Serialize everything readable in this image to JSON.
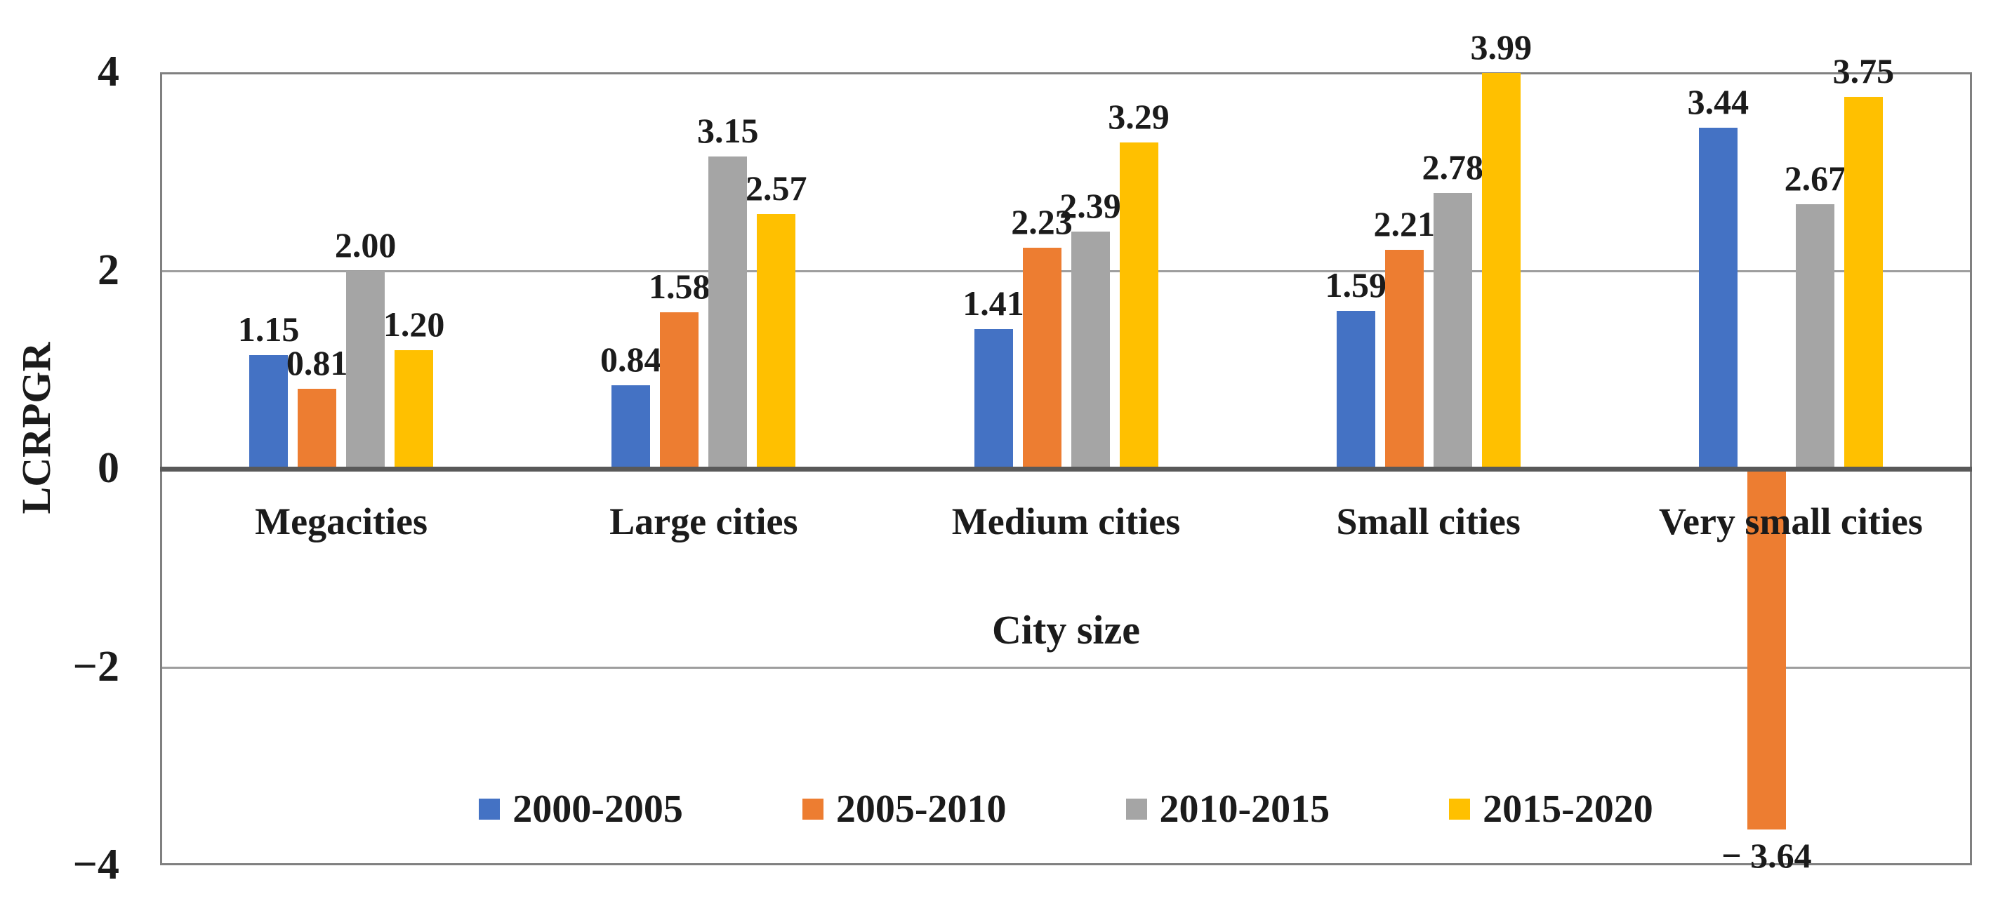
{
  "chart_data": {
    "type": "bar",
    "title": "",
    "xlabel": "City size",
    "ylabel": "LCRPGR",
    "ylim": [
      -4,
      4
    ],
    "grid": "horizontal-only",
    "legend_position": "bottom-inside",
    "y_ticks": [
      {
        "value": 4,
        "label": "4"
      },
      {
        "value": 2,
        "label": "2"
      },
      {
        "value": 0,
        "label": "0"
      },
      {
        "value": -2,
        "label": "−2"
      },
      {
        "value": -4,
        "label": "−4"
      }
    ],
    "gridline_values": [
      2,
      -2
    ],
    "categories": [
      "Megacities",
      "Large cities",
      "Medium cities",
      "Small cities",
      "Very small cities"
    ],
    "series": [
      {
        "name": "2000-2005",
        "color": "#4472C4",
        "values": [
          1.15,
          0.84,
          1.41,
          1.59,
          3.44
        ],
        "labels": [
          "1.15",
          "0.84",
          "1.41",
          "1.59",
          "3.44"
        ]
      },
      {
        "name": "2005-2010",
        "color": "#ED7D31",
        "values": [
          0.81,
          1.58,
          2.23,
          2.21,
          -3.64
        ],
        "labels": [
          "0.81",
          "1.58",
          "2.23",
          "2.21",
          "− 3.64"
        ]
      },
      {
        "name": "2010-2015",
        "color": "#A5A5A5",
        "values": [
          2.0,
          3.15,
          2.39,
          2.78,
          2.67
        ],
        "labels": [
          "2.00",
          "3.15",
          "2.39",
          "2.78",
          "2.67"
        ]
      },
      {
        "name": "2015-2020",
        "color": "#FFC000",
        "values": [
          1.2,
          2.57,
          3.29,
          3.99,
          3.75
        ],
        "labels": [
          "1.20",
          "2.57",
          "3.29",
          "3.99",
          "3.75"
        ]
      }
    ],
    "colors": {
      "axis_frame": "#808080",
      "zero_line": "#595959",
      "gridline": "#9e9e9e",
      "text": "#1b1b1b"
    }
  }
}
